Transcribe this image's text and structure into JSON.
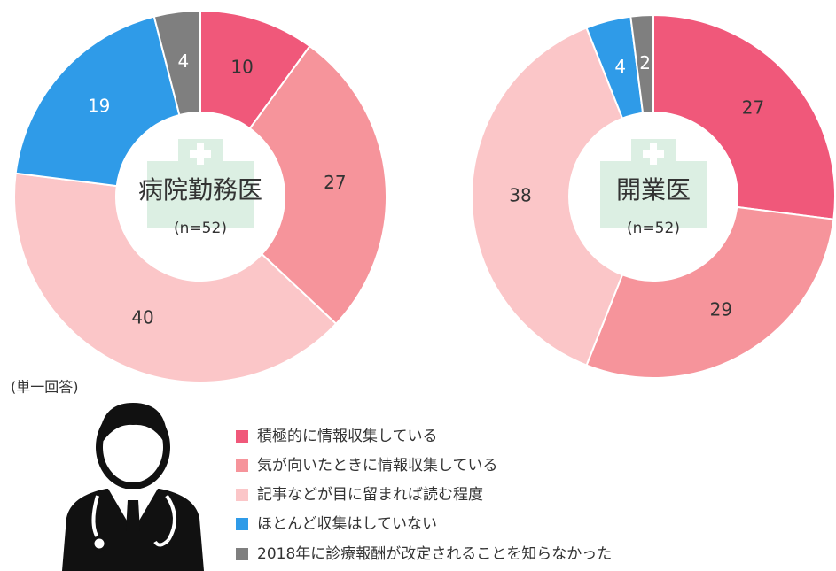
{
  "chart_data": [
    {
      "type": "donut",
      "title": "病院勤務医",
      "subtitle": "(n=52)",
      "values": [
        10,
        27,
        40,
        19,
        4
      ]
    },
    {
      "type": "donut",
      "title": "開業医",
      "subtitle": "(n=52)",
      "values": [
        27,
        29,
        38,
        4,
        2
      ]
    }
  ],
  "note": "(単一回答)",
  "legend": {
    "items": [
      "積極的に情報収集している",
      "気が向いたときに情報収集している",
      "記事などが目に留まれば読む程度",
      "ほとんど収集はしていない",
      "2018年に診療報酬が改定されることを知らなかった"
    ],
    "colors": [
      "#f0587a",
      "#f6949b",
      "#fbc6c8",
      "#2f9be8",
      "#7f7f7f"
    ]
  }
}
